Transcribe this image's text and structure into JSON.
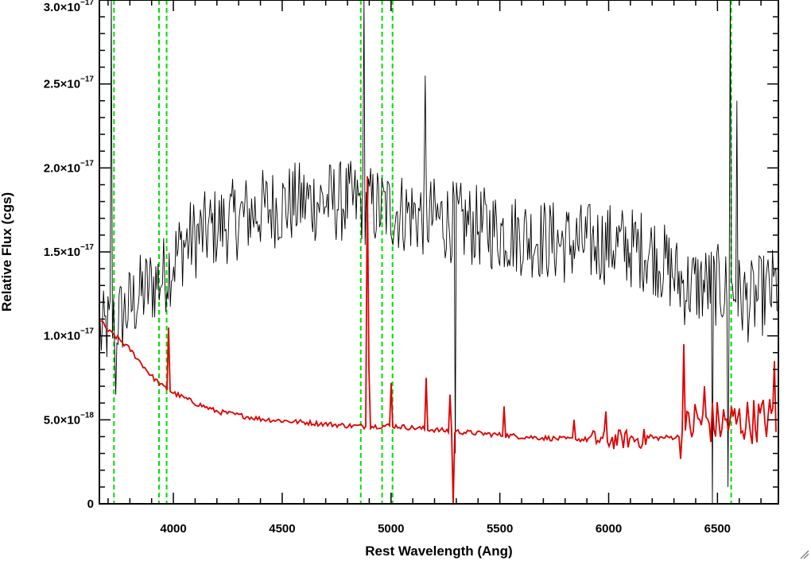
{
  "chart_data": {
    "type": "line",
    "title": "",
    "xlabel": "Rest Wavelength (Ang)",
    "ylabel": "Relative Flux (cgs)",
    "xlim": [
      3660,
      6780
    ],
    "ylim": [
      0,
      3e-17
    ],
    "xticks": [
      {
        "value": 4000,
        "label": "4000"
      },
      {
        "value": 4500,
        "label": "4500"
      },
      {
        "value": 5000,
        "label": "5000"
      },
      {
        "value": 5500,
        "label": "5500"
      },
      {
        "value": 6000,
        "label": "6000"
      },
      {
        "value": 6500,
        "label": "6500"
      }
    ],
    "yticks": [
      {
        "value": 0,
        "label": "0",
        "mantissa": "0",
        "exponent": ""
      },
      {
        "value": 5e-18,
        "label": "5.0×10^-18",
        "mantissa": "5.0×10",
        "exponent": "−18"
      },
      {
        "value": 1e-17,
        "label": "1.0×10^-17",
        "mantissa": "1.0×10",
        "exponent": "−17"
      },
      {
        "value": 1.5e-17,
        "label": "1.5×10^-17",
        "mantissa": "1.5×10",
        "exponent": "−17"
      },
      {
        "value": 2e-17,
        "label": "2.0×10^-17",
        "mantissa": "2.0×10",
        "exponent": "−17"
      },
      {
        "value": 2.5e-17,
        "label": "2.5×10^-17",
        "mantissa": "2.5×10",
        "exponent": "−17"
      },
      {
        "value": 3e-17,
        "label": "3.0×10^-17",
        "mantissa": "3.0×10",
        "exponent": "−17"
      }
    ],
    "grid": false,
    "legend": "none",
    "series": [
      {
        "role": "spectrum",
        "color": "#000000",
        "description_of_shape": "noisy spectrum; smoothed level vs wavelength",
        "envelope_x": [
          3660,
          3750,
          3850,
          3950,
          4050,
          4200,
          4400,
          4600,
          4800,
          5000,
          5200,
          5400,
          5600,
          5800,
          6000,
          6200,
          6350,
          6500,
          6650,
          6780
        ],
        "envelope_y": [
          1e-17,
          1.1e-17,
          1.25e-17,
          1.35e-17,
          1.55e-17,
          1.65e-17,
          1.75e-17,
          1.8e-17,
          1.8e-17,
          1.75e-17,
          1.7e-17,
          1.65e-17,
          1.6e-17,
          1.55e-17,
          1.55e-17,
          1.5e-17,
          1.3e-17,
          1.3e-17,
          1.2e-17,
          1.3e-17
        ],
        "noise_amplitude": 2.5e-18,
        "spikes": [
          {
            "x": 3720,
            "y": 3e-17
          },
          {
            "x": 4880,
            "y": 3e-17
          },
          {
            "x": 5160,
            "y": 2.55e-17
          },
          {
            "x": 6560,
            "y": 3e-17
          },
          {
            "x": 6590,
            "y": 2.4e-17
          }
        ],
        "dips": [
          {
            "x": 3740,
            "y": 6.5e-18
          },
          {
            "x": 5300,
            "y": 3e-18
          },
          {
            "x": 6480,
            "y": 0
          },
          {
            "x": 6550,
            "y": 1e-18
          }
        ]
      },
      {
        "role": "error",
        "color": "#dd0000",
        "x": [
          3660,
          3700,
          3750,
          3800,
          3850,
          3900,
          3950,
          4000,
          4100,
          4200,
          4400,
          4600,
          4800,
          4900,
          5000,
          5200,
          5400,
          5600,
          5800,
          6000,
          6200,
          6340,
          6400,
          6500,
          6600,
          6700,
          6780
        ],
        "y": [
          1.1e-17,
          1.03e-17,
          9.8e-18,
          9.2e-18,
          8.4e-18,
          7.6e-18,
          7e-18,
          6.6e-18,
          6e-18,
          5.5e-18,
          5.05e-18,
          4.85e-18,
          4.65e-18,
          4.6e-18,
          4.65e-18,
          4.4e-18,
          4.2e-18,
          4e-18,
          3.85e-18,
          3.8e-18,
          3.9e-18,
          4e-18,
          5e-18,
          4.8e-18,
          4.9e-18,
          5e-18,
          5.2e-18
        ],
        "spikes": [
          {
            "x": 3980,
            "y": 1.05e-17
          },
          {
            "x": 4890,
            "y": 1.95e-17
          },
          {
            "x": 4895,
            "y": 8e-18
          },
          {
            "x": 5000,
            "y": 7.2e-18
          },
          {
            "x": 5165,
            "y": 7.5e-18
          },
          {
            "x": 5270,
            "y": 6.5e-18
          },
          {
            "x": 5520,
            "y": 5.8e-18
          },
          {
            "x": 5840,
            "y": 5e-18
          },
          {
            "x": 5990,
            "y": 5.5e-18
          },
          {
            "x": 6350,
            "y": 9.5e-18
          },
          {
            "x": 6440,
            "y": 7e-18
          },
          {
            "x": 6760,
            "y": 8.5e-18
          },
          {
            "x": 6780,
            "y": 8e-18
          }
        ],
        "dips": [
          {
            "x": 5290,
            "y": 0
          }
        ]
      }
    ],
    "vertical_lines": [
      {
        "x": 3727,
        "style": "dashed",
        "color": "#00dd00"
      },
      {
        "x": 3934,
        "style": "dashed",
        "color": "#00dd00"
      },
      {
        "x": 3969,
        "style": "dashed",
        "color": "#00dd00"
      },
      {
        "x": 4861,
        "style": "dashed",
        "color": "#00dd00"
      },
      {
        "x": 4959,
        "style": "dashed",
        "color": "#00dd00"
      },
      {
        "x": 5007,
        "style": "dashed",
        "color": "#00dd00"
      },
      {
        "x": 6563,
        "style": "dashed",
        "color": "#00dd00"
      }
    ]
  }
}
